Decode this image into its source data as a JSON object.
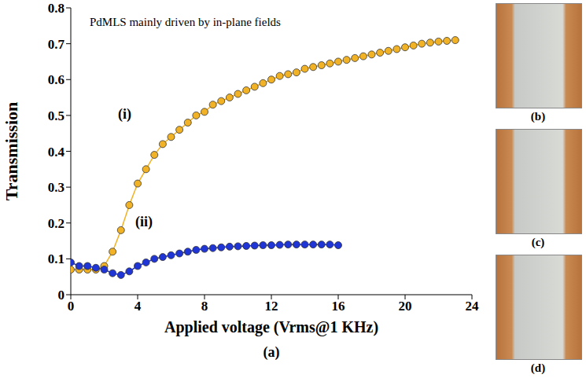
{
  "chart_data": {
    "type": "line",
    "annotation": "PdMLS mainly driven by in-plane fields",
    "xlabel": "Applied voltage (Vrms@1 KHz)",
    "ylabel": "Transmission",
    "panel_label": "(a)",
    "photo_labels": [
      "(b)",
      "(c)",
      "(d)"
    ],
    "xlim": [
      0,
      24
    ],
    "xticks": [
      0,
      4,
      8,
      12,
      16,
      20,
      24
    ],
    "ylim": [
      0,
      0.8
    ],
    "yticks": [
      0,
      0.1,
      0.2,
      0.3,
      0.4,
      0.5,
      0.6,
      0.7,
      0.8
    ],
    "grid": false,
    "series": [
      {
        "name": "(i)",
        "color": "#f2b225",
        "marker": "circle",
        "line_style": "solid",
        "x": [
          0,
          0.5,
          1,
          1.5,
          2,
          2.5,
          3,
          3.5,
          4,
          4.5,
          5,
          5.5,
          6,
          6.5,
          7,
          7.5,
          8,
          8.5,
          9,
          9.5,
          10,
          10.5,
          11,
          11.5,
          12,
          12.5,
          13,
          13.5,
          14,
          14.5,
          15,
          15.5,
          16,
          16.5,
          17,
          17.5,
          18,
          18.5,
          19,
          19.5,
          20,
          20.5,
          21,
          21.5,
          22,
          22.5,
          23
        ],
        "values": [
          0.07,
          0.07,
          0.07,
          0.07,
          0.08,
          0.12,
          0.18,
          0.25,
          0.31,
          0.35,
          0.39,
          0.42,
          0.44,
          0.46,
          0.48,
          0.5,
          0.51,
          0.53,
          0.54,
          0.55,
          0.56,
          0.57,
          0.58,
          0.59,
          0.6,
          0.61,
          0.615,
          0.62,
          0.63,
          0.635,
          0.64,
          0.645,
          0.65,
          0.655,
          0.66,
          0.665,
          0.67,
          0.675,
          0.68,
          0.685,
          0.69,
          0.695,
          0.7,
          0.703,
          0.706,
          0.708,
          0.71
        ]
      },
      {
        "name": "(ii)",
        "color": "#1f35d6",
        "marker": "circle",
        "line_style": "solid",
        "x": [
          0,
          0.5,
          1,
          1.5,
          2,
          2.5,
          3,
          3.5,
          4,
          4.5,
          5,
          5.5,
          6,
          6.5,
          7,
          7.5,
          8,
          8.5,
          9,
          9.5,
          10,
          10.5,
          11,
          11.5,
          12,
          12.5,
          13,
          13.5,
          14,
          14.5,
          15,
          15.5,
          16
        ],
        "values": [
          0.09,
          0.08,
          0.08,
          0.075,
          0.07,
          0.06,
          0.055,
          0.065,
          0.08,
          0.09,
          0.1,
          0.105,
          0.11,
          0.115,
          0.12,
          0.125,
          0.128,
          0.13,
          0.132,
          0.134,
          0.135,
          0.136,
          0.137,
          0.138,
          0.138,
          0.139,
          0.14,
          0.14,
          0.14,
          0.14,
          0.14,
          0.14,
          0.138
        ]
      }
    ]
  }
}
